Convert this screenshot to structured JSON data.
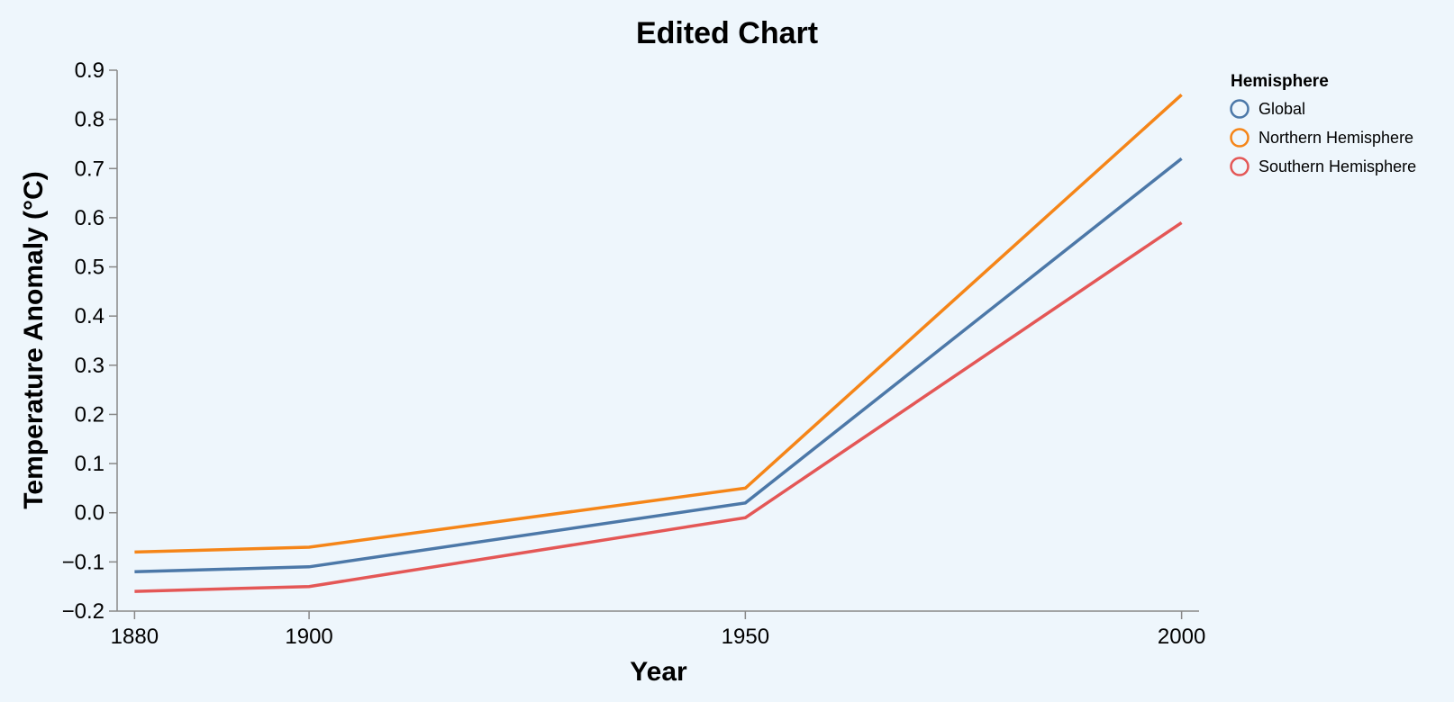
{
  "chart_data": {
    "type": "line",
    "title": "Edited Chart",
    "xlabel": "Year",
    "ylabel": "Temperature Anomaly (°C)",
    "x": [
      1880,
      1900,
      1950,
      2000
    ],
    "x_tick_labels": [
      "1880",
      "1900",
      "1950",
      "2000"
    ],
    "xlim": [
      1878,
      2002
    ],
    "ylim": [
      -0.2,
      0.9
    ],
    "y_ticks": [
      -0.2,
      -0.1,
      0.0,
      0.1,
      0.2,
      0.3,
      0.4,
      0.5,
      0.6,
      0.7,
      0.8,
      0.9
    ],
    "y_tick_labels": [
      "−0.2",
      "−0.1",
      "0.0",
      "0.1",
      "0.2",
      "0.3",
      "0.4",
      "0.5",
      "0.6",
      "0.7",
      "0.8",
      "0.9"
    ],
    "grid": false,
    "legend": {
      "title": "Hemisphere",
      "placement": "right"
    },
    "series": [
      {
        "name": "Global",
        "color": "#4c78a8",
        "values": [
          -0.12,
          -0.11,
          0.02,
          0.72
        ]
      },
      {
        "name": "Northern Hemisphere",
        "color": "#f58518",
        "values": [
          -0.08,
          -0.07,
          0.05,
          0.85
        ]
      },
      {
        "name": "Southern Hemisphere",
        "color": "#e45756",
        "values": [
          -0.16,
          -0.15,
          -0.01,
          0.59
        ]
      }
    ]
  }
}
